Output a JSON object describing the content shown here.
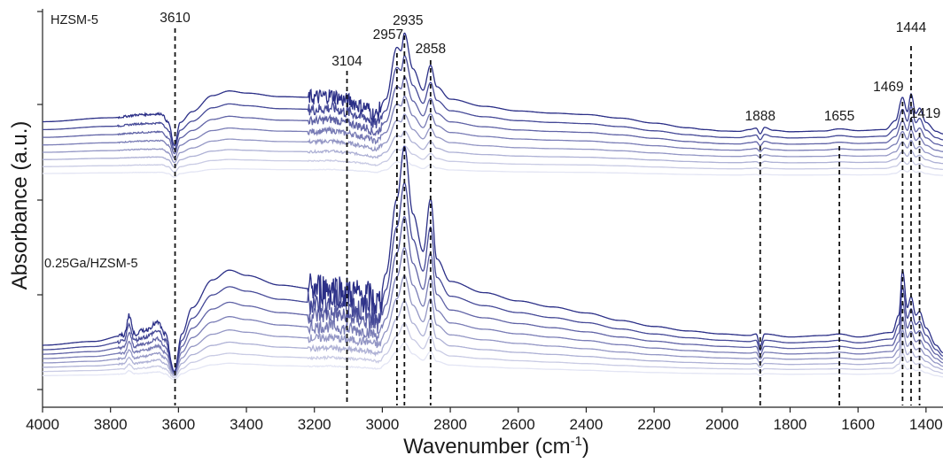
{
  "chart_data": {
    "type": "line",
    "xlabel": "Wavenumber (cm",
    "xlabel_sup": "-1",
    "xlabel_end": ")",
    "ylabel": "Absorbance (a.u.)",
    "xlim": [
      4000,
      1350
    ],
    "x_reversed": true,
    "x_ticks": [
      "4000",
      "3800",
      "3600",
      "3400",
      "3200",
      "3000",
      "2800",
      "2600",
      "2400",
      "2200",
      "2000",
      "1800",
      "1600",
      "1400"
    ],
    "series_count": 8,
    "series_color_range": [
      "#e3e5f4",
      "#2b2f87"
    ],
    "samples": [
      {
        "label": "HZSM-5",
        "baseline_shape": [
          [
            4000,
            0.32
          ],
          [
            3800,
            0.43
          ],
          [
            3700,
            0.52
          ],
          [
            3650,
            0.54
          ],
          [
            3630,
            0.3
          ],
          [
            3612,
            -0.35
          ],
          [
            3595,
            0.3
          ],
          [
            3560,
            0.6
          ],
          [
            3500,
            1.05
          ],
          [
            3450,
            1.18
          ],
          [
            3400,
            1.12
          ],
          [
            3300,
            1.02
          ],
          [
            3200,
            1.0
          ],
          [
            3150,
            1.05
          ],
          [
            3100,
            0.9
          ],
          [
            3050,
            0.72
          ],
          [
            3020,
            0.5
          ],
          [
            2990,
            0.95
          ],
          [
            2957,
            2.4
          ],
          [
            2945,
            2.3
          ],
          [
            2935,
            2.8
          ],
          [
            2910,
            1.8
          ],
          [
            2880,
            1.2
          ],
          [
            2858,
            1.9
          ],
          [
            2840,
            1.3
          ],
          [
            2800,
            0.95
          ],
          [
            2700,
            0.75
          ],
          [
            2600,
            0.62
          ],
          [
            2500,
            0.56
          ],
          [
            2400,
            0.52
          ],
          [
            2300,
            0.42
          ],
          [
            2200,
            0.28
          ],
          [
            2100,
            0.15
          ],
          [
            2050,
            0.1
          ],
          [
            2000,
            0.06
          ],
          [
            1950,
            0.05
          ],
          [
            1920,
            0.1
          ],
          [
            1900,
            0.14
          ],
          [
            1888,
            -0.02
          ],
          [
            1875,
            0.16
          ],
          [
            1850,
            0.08
          ],
          [
            1800,
            0.04
          ],
          [
            1700,
            0.06
          ],
          [
            1655,
            0.12
          ],
          [
            1600,
            0.07
          ],
          [
            1520,
            0.1
          ],
          [
            1490,
            0.35
          ],
          [
            1469,
            1.0
          ],
          [
            1455,
            0.6
          ],
          [
            1444,
            1.1
          ],
          [
            1430,
            0.55
          ],
          [
            1419,
            0.7
          ],
          [
            1400,
            0.3
          ],
          [
            1370,
            0.05
          ],
          [
            1350,
            -0.02
          ]
        ]
      },
      {
        "label": "0.25Ga/HZSM-5",
        "baseline_shape": [
          [
            4000,
            0.05
          ],
          [
            3850,
            0.1
          ],
          [
            3760,
            0.18
          ],
          [
            3745,
            0.45
          ],
          [
            3730,
            0.2
          ],
          [
            3700,
            0.25
          ],
          [
            3660,
            0.35
          ],
          [
            3640,
            0.2
          ],
          [
            3612,
            -0.3
          ],
          [
            3590,
            0.2
          ],
          [
            3560,
            0.55
          ],
          [
            3500,
            0.92
          ],
          [
            3450,
            1.05
          ],
          [
            3400,
            0.98
          ],
          [
            3300,
            0.85
          ],
          [
            3200,
            0.8
          ],
          [
            3150,
            0.82
          ],
          [
            3100,
            0.75
          ],
          [
            3050,
            0.7
          ],
          [
            3010,
            0.6
          ],
          [
            2990,
            1.0
          ],
          [
            2957,
            2.0
          ],
          [
            2935,
            2.7
          ],
          [
            2910,
            1.8
          ],
          [
            2880,
            1.3
          ],
          [
            2858,
            2.0
          ],
          [
            2840,
            1.2
          ],
          [
            2800,
            0.9
          ],
          [
            2700,
            0.75
          ],
          [
            2600,
            0.64
          ],
          [
            2500,
            0.56
          ],
          [
            2400,
            0.48
          ],
          [
            2300,
            0.38
          ],
          [
            2200,
            0.3
          ],
          [
            2100,
            0.24
          ],
          [
            2000,
            0.2
          ],
          [
            1920,
            0.18
          ],
          [
            1900,
            0.2
          ],
          [
            1888,
            0.04
          ],
          [
            1875,
            0.2
          ],
          [
            1800,
            0.16
          ],
          [
            1700,
            0.18
          ],
          [
            1655,
            0.2
          ],
          [
            1600,
            0.16
          ],
          [
            1500,
            0.22
          ],
          [
            1480,
            0.45
          ],
          [
            1469,
            1.05
          ],
          [
            1455,
            0.55
          ],
          [
            1444,
            0.7
          ],
          [
            1430,
            0.45
          ],
          [
            1419,
            0.5
          ],
          [
            1400,
            0.28
          ],
          [
            1370,
            0.05
          ],
          [
            1350,
            -0.05
          ]
        ]
      }
    ],
    "peak_markers": [
      {
        "label": "3610",
        "x": 3610
      },
      {
        "label": "3104",
        "x": 3104
      },
      {
        "label": "2957",
        "x": 2957
      },
      {
        "label": "2935",
        "x": 2935
      },
      {
        "label": "2858",
        "x": 2858
      },
      {
        "label": "1888",
        "x": 1888
      },
      {
        "label": "1655",
        "x": 1655
      },
      {
        "label": "1469",
        "x": 1469
      },
      {
        "label": "1444",
        "x": 1444
      },
      {
        "label": "1419",
        "x": 1419
      }
    ],
    "grid": false,
    "legend": "none"
  }
}
